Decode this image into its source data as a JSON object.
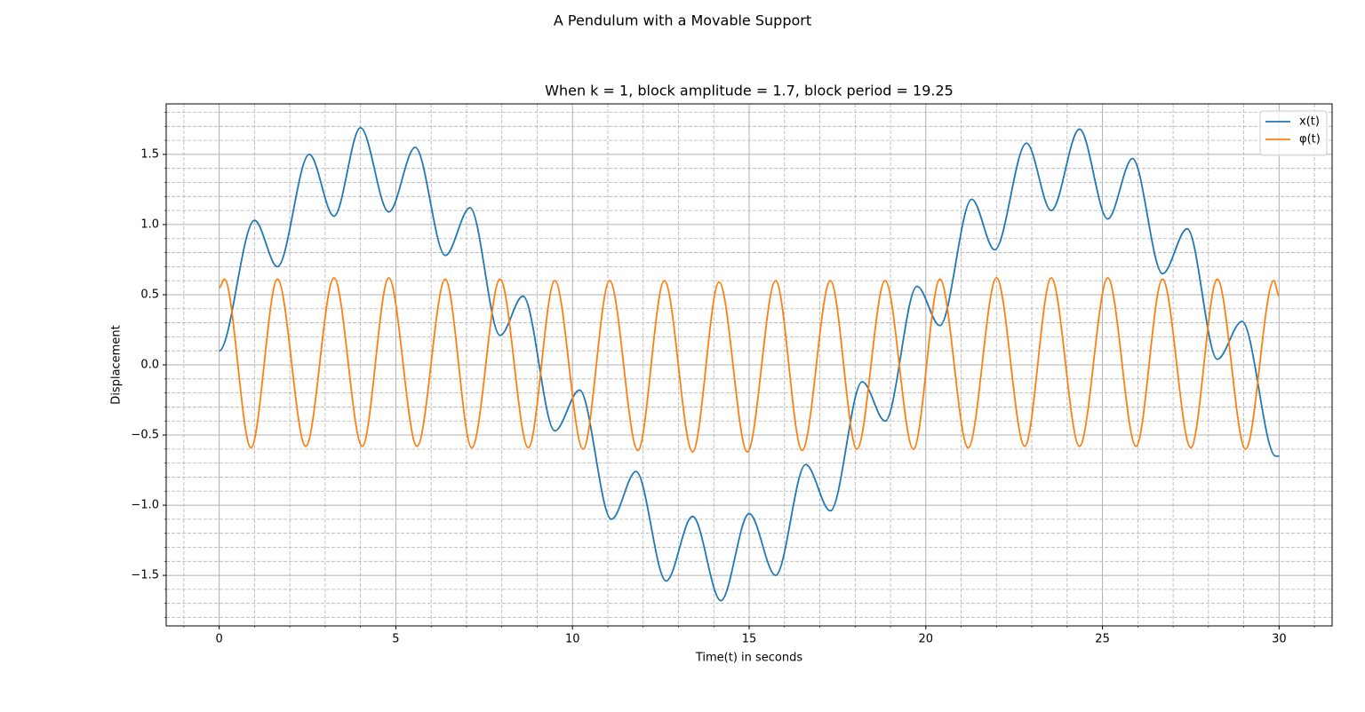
{
  "chart_data": {
    "type": "line",
    "suptitle": "A Pendulum with a Movable Support",
    "title": "When k = 1, block amplitude = 1.7, block period = 19.25",
    "xlabel": "Time(t) in seconds",
    "ylabel": "Displacement",
    "xlim": [
      -1.5,
      31.5
    ],
    "ylim": [
      -1.86,
      1.86
    ],
    "xticks": [
      0,
      5,
      10,
      15,
      20,
      25,
      30
    ],
    "yticks": [
      {
        "value": -1.5,
        "label": "−1.5"
      },
      {
        "value": -1.0,
        "label": "−1.0"
      },
      {
        "value": -0.5,
        "label": "−0.5"
      },
      {
        "value": 0,
        "label": "0.0"
      },
      0.5,
      {
        "value": 1,
        "label": "1.0"
      },
      1.5
    ],
    "grid": true,
    "minor_grid": true,
    "legend": "upper right",
    "series": [
      {
        "name": "x(t)",
        "color": "#1f77b4",
        "x": [
          0,
          1.0,
          1.65,
          2.55,
          3.25,
          4.0,
          4.8,
          5.55,
          6.4,
          7.1,
          7.95,
          8.6,
          9.5,
          10.2,
          11.1,
          11.8,
          12.65,
          13.4,
          14.2,
          15.0,
          15.75,
          16.6,
          17.3,
          18.2,
          18.85,
          19.75,
          20.4,
          21.3,
          21.95,
          22.85,
          23.55,
          24.35,
          25.15,
          25.85,
          26.7,
          27.4,
          28.25,
          28.95,
          29.9,
          30
        ],
        "values": [
          0.1,
          1.03,
          0.7,
          1.5,
          1.06,
          1.69,
          1.09,
          1.55,
          0.78,
          1.12,
          0.21,
          0.49,
          -0.47,
          -0.18,
          -1.1,
          -0.76,
          -1.54,
          -1.08,
          -1.68,
          -1.06,
          -1.5,
          -0.71,
          -1.04,
          -0.12,
          -0.4,
          0.56,
          0.28,
          1.18,
          0.82,
          1.58,
          1.1,
          1.68,
          1.04,
          1.47,
          0.65,
          0.97,
          0.04,
          0.31,
          -0.65,
          -0.65
        ]
      },
      {
        "name": "φ(t)",
        "color": "#ff7f0e",
        "x": [
          0,
          0.15,
          0.9,
          1.65,
          2.45,
          3.25,
          4.05,
          4.8,
          5.6,
          6.4,
          7.15,
          7.95,
          8.75,
          9.5,
          10.3,
          11.05,
          11.85,
          12.6,
          13.4,
          14.15,
          14.95,
          15.75,
          16.5,
          17.3,
          18.05,
          18.85,
          19.65,
          20.4,
          21.2,
          22.0,
          22.8,
          23.55,
          24.35,
          25.15,
          25.95,
          26.7,
          27.5,
          28.25,
          29.05,
          29.85,
          30
        ],
        "values": [
          0.55,
          0.61,
          -0.59,
          0.61,
          -0.58,
          0.62,
          -0.58,
          0.62,
          -0.58,
          0.61,
          -0.59,
          0.61,
          -0.59,
          0.6,
          -0.6,
          0.6,
          -0.61,
          0.6,
          -0.62,
          0.59,
          -0.62,
          0.6,
          -0.61,
          0.6,
          -0.6,
          0.6,
          -0.6,
          0.61,
          -0.59,
          0.62,
          -0.58,
          0.62,
          -0.58,
          0.62,
          -0.58,
          0.61,
          -0.59,
          0.61,
          -0.6,
          0.6,
          0.49
        ]
      }
    ]
  }
}
